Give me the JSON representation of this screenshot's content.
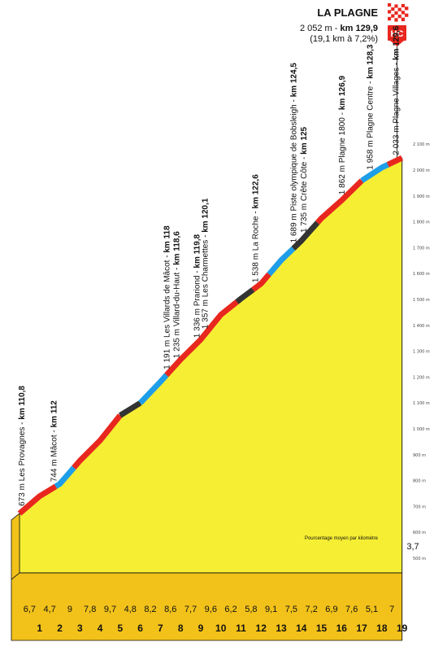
{
  "summit": {
    "name": "LA PLAGNE",
    "altitude": "2 052 m",
    "separator": " - ",
    "km_prefix": "km",
    "km": "129,9",
    "details": "(19,1 km à 7,2%)",
    "category": "HC",
    "category_color": "#e8271f"
  },
  "chart_data": {
    "type": "area",
    "title": "",
    "xlabel": "",
    "ylabel": "",
    "profile_km": [
      0,
      1,
      2,
      3,
      4,
      5,
      6,
      7,
      8,
      9,
      10,
      11,
      12,
      13,
      14,
      15,
      16,
      17,
      18,
      19
    ],
    "profile_alt": [
      673,
      740,
      787,
      877,
      955,
      1052,
      1100,
      1182,
      1268,
      1345,
      1441,
      1503,
      1561,
      1652,
      1727,
      1814,
      1883,
      1959,
      2010,
      2047
    ],
    "ylim": [
      500,
      2100
    ],
    "y_ticks": [
      "500 m",
      "600 m",
      "700 m",
      "800 m",
      "900 m",
      "1 000 m",
      "1 100 m",
      "1 200 m",
      "1 300 m",
      "1 400 m",
      "1 500 m",
      "1 600 m",
      "1 700 m",
      "1 800 m",
      "1 900 m",
      "2 000 m",
      "2 100 m"
    ],
    "y_tick_values": [
      500,
      600,
      700,
      800,
      900,
      1000,
      1100,
      1200,
      1300,
      1400,
      1500,
      1600,
      1700,
      1800,
      1900,
      2000,
      2100
    ],
    "km_markers": [
      "1",
      "2",
      "3",
      "4",
      "5",
      "6",
      "7",
      "8",
      "9",
      "10",
      "11",
      "12",
      "13",
      "14",
      "15",
      "16",
      "17",
      "18",
      "19"
    ],
    "gradients": [
      "6,7",
      "4,7",
      "9",
      "7,8",
      "9,7",
      "4,8",
      "8,2",
      "8,6",
      "7,7",
      "9,6",
      "6,2",
      "5,8",
      "9,1",
      "7,5",
      "7,2",
      "6,9",
      "7,6",
      "5,1",
      "7",
      "3,7"
    ],
    "gradient_note": "Pourcentage moyen par kilomètre",
    "segments": [
      {
        "from": 0,
        "to": 1.8,
        "color": "#e8271f"
      },
      {
        "from": 1.8,
        "to": 2.7,
        "color": "#1e9ee8"
      },
      {
        "from": 2.7,
        "to": 5.0,
        "color": "#e8271f"
      },
      {
        "from": 5.0,
        "to": 6.0,
        "color": "#333333"
      },
      {
        "from": 6.0,
        "to": 7.3,
        "color": "#1e9ee8"
      },
      {
        "from": 7.3,
        "to": 10.8,
        "color": "#e8271f"
      },
      {
        "from": 10.8,
        "to": 11.6,
        "color": "#333333"
      },
      {
        "from": 11.6,
        "to": 12.4,
        "color": "#e8271f"
      },
      {
        "from": 12.4,
        "to": 13.6,
        "color": "#1e9ee8"
      },
      {
        "from": 13.6,
        "to": 14.8,
        "color": "#333333"
      },
      {
        "from": 14.8,
        "to": 17.0,
        "color": "#e8271f"
      },
      {
        "from": 17.0,
        "to": 18.3,
        "color": "#1e9ee8"
      },
      {
        "from": 18.3,
        "to": 19,
        "color": "#e8271f"
      }
    ],
    "waypoints": [
      {
        "km_pos": 0.1,
        "text": "673 m Les Provagnes - ",
        "km": "km 110,8"
      },
      {
        "km_pos": 1.7,
        "text": "744 m Mâcot - ",
        "km": "km 112"
      },
      {
        "km_pos": 7.3,
        "text": "1 191 m Les Villards de Mâcot - ",
        "km": "km 118"
      },
      {
        "km_pos": 7.8,
        "text": "1 235 m Villard-du-Haut - ",
        "km": "km 118,6"
      },
      {
        "km_pos": 8.8,
        "text": "1 336 m Prariond - ",
        "km": "km 119,8"
      },
      {
        "km_pos": 9.2,
        "text": "1 357 m Les Charmettes - ",
        "km": "km 120,1"
      },
      {
        "km_pos": 11.7,
        "text": "1 538 m La Roche - ",
        "km": "km 122,6"
      },
      {
        "km_pos": 13.6,
        "text": "1 689 m Piste olympique de Bobsleigh - ",
        "km": "km 124,5"
      },
      {
        "km_pos": 14.1,
        "text": "1 735 m Crête Côte - ",
        "km": "km 125"
      },
      {
        "km_pos": 16.0,
        "text": "1 862 m Plagne 1800 - ",
        "km": "km 126,9"
      },
      {
        "km_pos": 17.4,
        "text": "1 958 m Plagne Centre - ",
        "km": "km 128,3"
      },
      {
        "km_pos": 18.7,
        "text": "2 033 m Plagne Villages - ",
        "km": "km 129,6"
      }
    ],
    "colors": {
      "fill": "#f6ee33",
      "base_fill": "#f2c21a",
      "grid_line": "#555555",
      "axis_line": "#111111"
    }
  }
}
